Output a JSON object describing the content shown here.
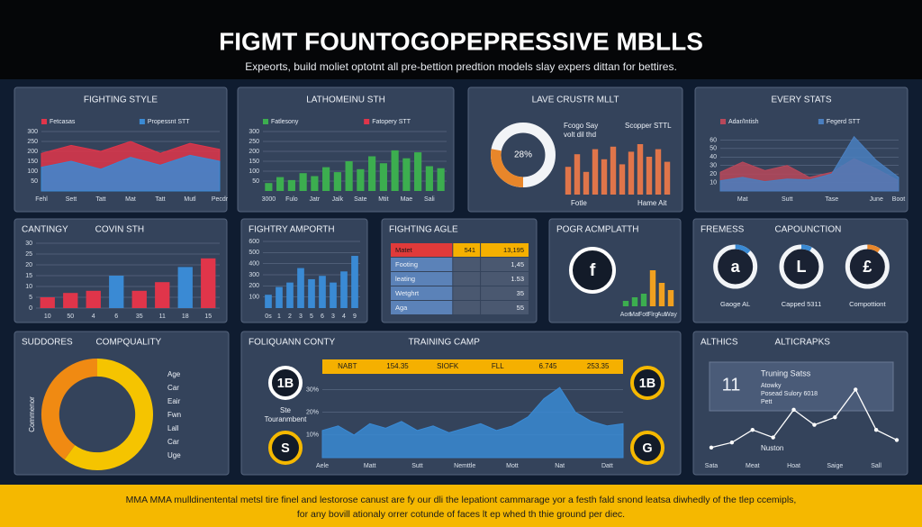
{
  "header": {
    "title": "FIGMT FOUNTOGOPEPRESSIVE MBLLS",
    "subtitle": "Expeorts, build moliet optotnt all pre-bettion predtion models slay expers dittan for bettires."
  },
  "panels": [
    {
      "title": "FIGHTING STYLE",
      "charts": [
        {
          "type": "area",
          "categories": [
            "Fehl",
            "Sett",
            "Tatt",
            "Mat",
            "Tatt",
            "Mutl",
            "Pecdr"
          ],
          "series": [
            {
              "name": "Fetcasas",
              "color": "#e0354a",
              "values": [
                190,
                230,
                200,
                250,
                190,
                240,
                210
              ]
            },
            {
              "name": "Propessnt STT",
              "color": "#3a8ad4",
              "values": [
                120,
                150,
                110,
                170,
                130,
                180,
                150
              ]
            }
          ],
          "ylim": [
            0,
            300
          ],
          "yticks": [
            50,
            100,
            150,
            200,
            250,
            300
          ],
          "grid": true
        }
      ]
    },
    {
      "title": "LATHOMEINU STH",
      "charts": [
        {
          "type": "bar",
          "categories": [
            "3000",
            null,
            "Fulo",
            null,
            "Jatr",
            null,
            "Jalk",
            null,
            "Sate",
            null,
            "Mtit",
            null,
            "Mae",
            null,
            "Sali",
            null
          ],
          "values": [
            40,
            70,
            55,
            90,
            75,
            120,
            95,
            150,
            110,
            175,
            140,
            205,
            165,
            195,
            125,
            115
          ],
          "color": "#3cae4f",
          "legend": [
            {
              "name": "Fatlesony",
              "color": "#3cae4f"
            },
            {
              "name": "Fatopery STT",
              "color": "#e0354a"
            }
          ],
          "ylim": [
            0,
            300
          ],
          "yticks": [
            50,
            100,
            150,
            200,
            250,
            300
          ],
          "grid": true
        }
      ]
    },
    {
      "title": "LAVE CRUSTR MLLT",
      "charts": [
        {
          "type": "donut",
          "values": [
            28
          ],
          "value_labels": [
            "28%"
          ],
          "colors": [
            "#e8862a"
          ]
        },
        {
          "type": "bar",
          "values": [
            55,
            80,
            45,
            90,
            70,
            95,
            60,
            85,
            100,
            75,
            90,
            65
          ],
          "color": "#e0754a"
        }
      ],
      "notes": [
        "Fcogo Say",
        "volt dil thd",
        "Scopper STTL",
        "Fotle",
        "Hame Ait"
      ]
    },
    {
      "title": "EVERY STATS",
      "charts": [
        {
          "type": "area",
          "categories": [
            null,
            "Mat",
            null,
            "Sutt",
            null,
            "Tase",
            null,
            "June",
            "Boot"
          ],
          "series": [
            {
              "name": "Adar/Intish",
              "color": "#b8485a",
              "values": [
                22,
                34,
                24,
                30,
                16,
                22,
                38,
                26,
                12
              ]
            },
            {
              "name": "Fegerd STT",
              "color": "#4a7fc0",
              "values": [
                12,
                16,
                11,
                14,
                13,
                20,
                64,
                36,
                16
              ]
            }
          ],
          "ylim": [
            0,
            70
          ],
          "yticks": [
            10,
            20,
            30,
            40,
            50,
            60
          ],
          "grid": true
        }
      ]
    },
    {
      "title": "CANTINGY",
      "title2": "COVIN STH",
      "charts": [
        {
          "type": "bar",
          "categories": [
            "10",
            "50",
            "4",
            "6",
            "35",
            "11",
            "18",
            "15"
          ],
          "values": [
            5,
            7,
            8,
            15,
            8,
            12,
            19,
            23
          ],
          "colors": [
            "#e0354a",
            "#e0354a",
            "#e0354a",
            "#3a8ad4",
            "#e0354a",
            "#e0354a",
            "#3a8ad4",
            "#e0354a"
          ],
          "ylim": [
            0,
            30
          ],
          "yticks": [
            0,
            5,
            10,
            15,
            20,
            25,
            30
          ],
          "grid": true
        }
      ]
    },
    {
      "title": "FIGHTRY AMPORTH",
      "charts": [
        {
          "type": "bar",
          "categories": [
            "0s",
            "1",
            "2",
            "3",
            "5",
            "6",
            "3",
            "4",
            "9"
          ],
          "values": [
            120,
            190,
            230,
            360,
            260,
            290,
            230,
            330,
            470
          ],
          "color": "#3a8ad4",
          "ylim": [
            0,
            600
          ],
          "yticks": [
            100,
            200,
            300,
            400,
            500,
            600
          ],
          "grid": true
        }
      ]
    },
    {
      "title": "FIGHTING AGLE",
      "charts": [
        {
          "type": "table",
          "rows": [
            [
              "Matet",
              "541",
              "13,195"
            ],
            [
              "Footing",
              "",
              "1,45"
            ],
            [
              "leating",
              "",
              "1.53"
            ],
            [
              "Wetghrt",
              "",
              "35"
            ],
            [
              "Aga",
              "",
              "55"
            ]
          ]
        }
      ]
    },
    {
      "title": "POGR ACMPLATTH",
      "charts": [
        {
          "type": "badge",
          "label": "f",
          "color": "#ffffff"
        },
        {
          "type": "bar",
          "categories": [
            "Aon",
            "Mat",
            "Fott",
            "Flrg",
            "Aut",
            "Way"
          ],
          "values": [
            6,
            10,
            14,
            40,
            26,
            18
          ],
          "colors": [
            "#3cae4f",
            "#3cae4f",
            "#3cae4f",
            "#f0a020",
            "#f0a020",
            "#f0a020"
          ]
        }
      ]
    },
    {
      "title": "FREMESS",
      "title2": "CAPOUNCTION",
      "charts": [
        {
          "type": "gauges",
          "items": [
            {
              "letter": "a",
              "label": "Gaoge AL",
              "value": 12,
              "color": "#3a8ad4"
            },
            {
              "letter": "L",
              "label": "Capped 5311",
              "value": 8,
              "color": "#3a8ad4"
            },
            {
              "letter": "£",
              "label": "Compottiont",
              "value": 10,
              "color": "#e8862a"
            }
          ]
        }
      ]
    },
    {
      "title": "SUDDORES",
      "title2": "COMPQUALITY",
      "charts": [
        {
          "type": "donut",
          "values": [
            60,
            40
          ],
          "colors": [
            "#f5c400",
            "#f08a12"
          ]
        }
      ],
      "notes": [
        "Age",
        "Car",
        "Eair",
        "Fwn",
        "Lall",
        "Car",
        "Uge",
        "Commenor"
      ]
    },
    {
      "title": "FOLIQUANN CONTY",
      "title2": "TRAINING CAMP",
      "charts": [
        {
          "type": "badge",
          "label": "1B",
          "color": "#ffffff"
        },
        {
          "type": "badge",
          "label": "S",
          "color": "#f5b800"
        },
        {
          "type": "strip",
          "cells": [
            "NABT",
            "154.35",
            "SIOFK",
            "FLL",
            "6.745",
            "253.35"
          ]
        },
        {
          "type": "area",
          "categories": [
            "Aele",
            null,
            null,
            "Matt",
            null,
            null,
            "Sutt",
            null,
            null,
            "Nemttle",
            null,
            null,
            "Mott",
            null,
            null,
            "Nat",
            null,
            null,
            "Datt",
            null
          ],
          "series": [
            {
              "color": "#3a8ad4",
              "values": [
                12,
                14,
                10,
                15,
                13,
                16,
                12,
                14,
                11,
                13,
                15,
                12,
                14,
                18,
                26,
                31,
                20,
                16,
                14,
                15
              ]
            }
          ],
          "ylim": [
            0,
            35
          ],
          "yticks": [
            {
              "value": 10,
              "label": "10%"
            },
            {
              "value": 20,
              "label": "20%"
            },
            {
              "value": 30,
              "label": "30%"
            }
          ],
          "grid": true
        },
        {
          "type": "badge",
          "label": "1B",
          "color": "#f5b800"
        },
        {
          "type": "badge",
          "label": "G",
          "color": "#f5b800"
        }
      ],
      "notes": [
        "Ste",
        "Touranmbent"
      ]
    },
    {
      "title": "ALTHICS",
      "title2": "ALTICRAPKS",
      "charts": [
        {
          "type": "line",
          "categories": [
            "Sata",
            null,
            "Meat",
            null,
            "Hoat",
            null,
            "Saige",
            null,
            "Sall",
            null
          ],
          "values": [
            4,
            6,
            11,
            8,
            19,
            13,
            16,
            27,
            11,
            7
          ],
          "color": "#ffffff",
          "ylim": [
            0,
            35
          ]
        }
      ],
      "notes": [
        "11",
        "Truning Satss",
        "Atowky",
        "Posead Sulory 6018",
        "Pett",
        "Nuston"
      ]
    }
  ],
  "footer": {
    "lines": [
      "MMA MMA mulldinentental metsl tire finel and lestorose canust are fy our dli the lepationt cammarage yor a festh fald snond leatsa diwhedly of the tlep ccemipls,",
      "for any bovill ationaly orrer cotunde of faces lt ep whed th thie ground per diec."
    ]
  }
}
